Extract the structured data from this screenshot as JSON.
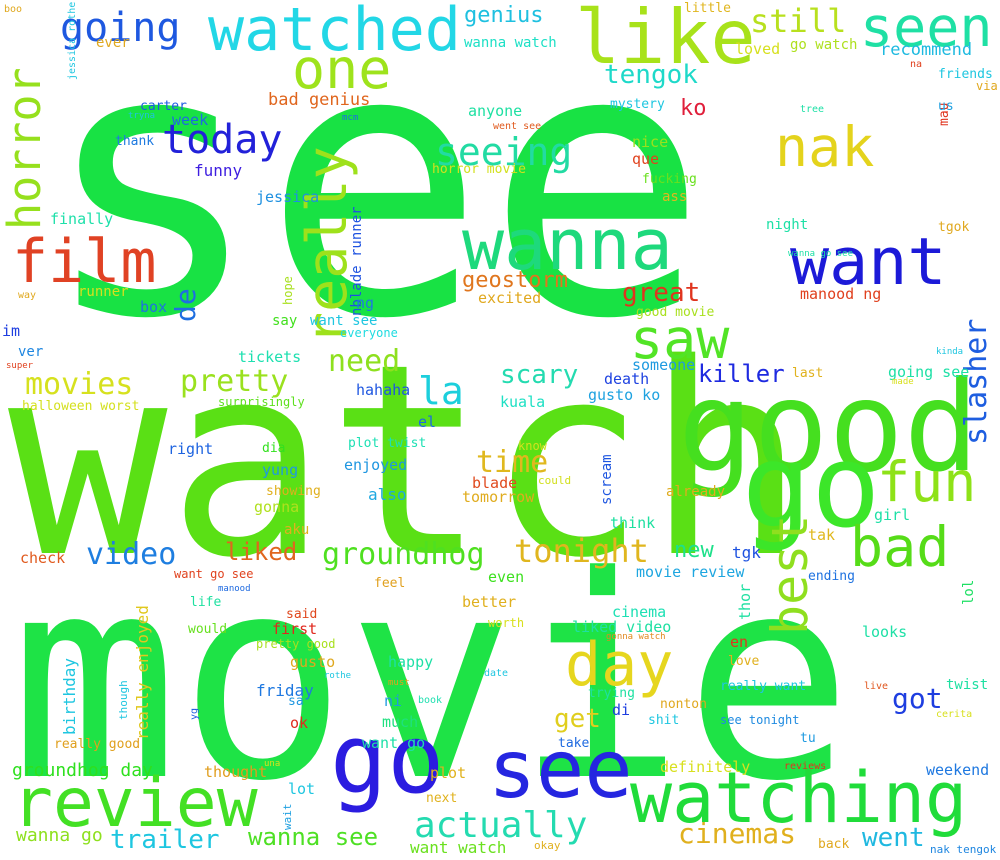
{
  "words": [
    {
      "text": "see",
      "color": "#18e244"
    },
    {
      "text": "watch",
      "color": "#5ae015"
    },
    {
      "text": "movie",
      "color": "#1ee346"
    },
    {
      "text": "good",
      "color": "#45df1f"
    },
    {
      "text": "go",
      "color": "#3ce629"
    },
    {
      "text": "go",
      "color": "#2b1ce0"
    },
    {
      "text": "see",
      "color": "#2526e0"
    },
    {
      "text": "review",
      "color": "#43e024"
    },
    {
      "text": "watching",
      "color": "#20dc3a"
    },
    {
      "text": "watched",
      "color": "#22d7e6"
    },
    {
      "text": "like",
      "color": "#a8e21a"
    },
    {
      "text": "seen",
      "color": "#1fe0a4"
    },
    {
      "text": "one",
      "color": "#9ee31c"
    },
    {
      "text": "wanna",
      "color": "#1ed97c"
    },
    {
      "text": "really",
      "color": "#9ee11b"
    },
    {
      "text": "want",
      "color": "#1c1ad8"
    },
    {
      "text": "nak",
      "color": "#e4d31c"
    },
    {
      "text": "saw",
      "color": "#52e426"
    },
    {
      "text": "day",
      "color": "#e6d61e"
    },
    {
      "text": "bad",
      "color": "#56dc18"
    },
    {
      "text": "fun",
      "color": "#8ee218"
    },
    {
      "text": "best",
      "color": "#8fdf1f"
    },
    {
      "text": "film",
      "color": "#e04224"
    },
    {
      "text": "horror",
      "color": "#96e01d"
    },
    {
      "text": "going",
      "color": "#1e58e0"
    },
    {
      "text": "today",
      "color": "#2221d9"
    },
    {
      "text": "seeing",
      "color": "#22dba3"
    },
    {
      "text": "movies",
      "color": "#d6e11e"
    },
    {
      "text": "pretty",
      "color": "#9ae11e"
    },
    {
      "text": "need",
      "color": "#8ee01e"
    },
    {
      "text": "la",
      "color": "#1ccfdc"
    },
    {
      "text": "video",
      "color": "#1e7ee0"
    },
    {
      "text": "groundhog",
      "color": "#4fe020"
    },
    {
      "text": "tonight",
      "color": "#e0b61e"
    },
    {
      "text": "actually",
      "color": "#24dbb0"
    },
    {
      "text": "trailer",
      "color": "#1ec6e0"
    },
    {
      "text": "wanna see",
      "color": "#4ee024"
    },
    {
      "text": "cinemas",
      "color": "#e0b01e"
    },
    {
      "text": "went",
      "color": "#1fb8e0"
    },
    {
      "text": "slasher",
      "color": "#1e5ee0"
    },
    {
      "text": "killer",
      "color": "#1e2ae0"
    },
    {
      "text": "time",
      "color": "#e0b81e"
    },
    {
      "text": "great",
      "color": "#e0341e"
    },
    {
      "text": "geostorm",
      "color": "#e0761e"
    },
    {
      "text": "scary",
      "color": "#24dbb0"
    },
    {
      "text": "liked",
      "color": "#e0661e"
    },
    {
      "text": "tengok",
      "color": "#1ed9c9"
    },
    {
      "text": "still",
      "color": "#b8e01e"
    },
    {
      "text": "genius",
      "color": "#1ec0e0"
    },
    {
      "text": "de",
      "color": "#1e6ee0"
    },
    {
      "text": "get",
      "color": "#e0ce1e"
    },
    {
      "text": "got",
      "color": "#1e3ee0"
    },
    {
      "text": "new",
      "color": "#1ee08a"
    },
    {
      "text": "ko",
      "color": "#e01e3a"
    },
    {
      "text": "groundhog day",
      "color": "#2ee01e"
    },
    {
      "text": "wanna go",
      "color": "#8ee01e"
    },
    {
      "text": "want watch",
      "color": "#6ae01e"
    },
    {
      "text": "recommend",
      "color": "#1ebae0"
    },
    {
      "text": "loved",
      "color": "#d6e01e"
    },
    {
      "text": "go watch",
      "color": "#aee01e"
    },
    {
      "text": "little",
      "color": "#e0b61e"
    },
    {
      "text": "ever",
      "color": "#e0a81e"
    },
    {
      "text": "wanna watch",
      "color": "#1ee0c6"
    },
    {
      "text": "bad genius",
      "color": "#e0661e"
    },
    {
      "text": "anyone",
      "color": "#1ee0a2"
    },
    {
      "text": "week",
      "color": "#1e6ae0"
    },
    {
      "text": "carter",
      "color": "#1e5ae0"
    },
    {
      "text": "thank",
      "color": "#1e7ae0"
    },
    {
      "text": "funny",
      "color": "#3e1ee0"
    },
    {
      "text": "jessica",
      "color": "#1e90e0"
    },
    {
      "text": "finally",
      "color": "#1ee0aa"
    },
    {
      "text": "runner",
      "color": "#d6e01e"
    },
    {
      "text": "box",
      "color": "#1e72e0"
    },
    {
      "text": "im",
      "color": "#1e3ee0"
    },
    {
      "text": "ver",
      "color": "#1e86e0"
    },
    {
      "text": "nice",
      "color": "#9ae01e"
    },
    {
      "text": "que",
      "color": "#e0421e"
    },
    {
      "text": "fucking",
      "color": "#6ae01e"
    },
    {
      "text": "ass",
      "color": "#e0b81e"
    },
    {
      "text": "horror movie",
      "color": "#d2e01e"
    },
    {
      "text": "went see",
      "color": "#e05a1e"
    },
    {
      "text": "excited",
      "color": "#e0a81e"
    },
    {
      "text": "nblade runner",
      "color": "#1e52e0"
    },
    {
      "text": "hope",
      "color": "#a8e01e"
    },
    {
      "text": "ng",
      "color": "#1e78e0"
    },
    {
      "text": "want see",
      "color": "#1ec6e0"
    },
    {
      "text": "say",
      "color": "#42e01e"
    },
    {
      "text": "everyone",
      "color": "#1edbe0"
    },
    {
      "text": "tickets",
      "color": "#1ee0b0"
    },
    {
      "text": "hahaha",
      "color": "#1e56e0"
    },
    {
      "text": "someone",
      "color": "#1e9ae0"
    },
    {
      "text": "death",
      "color": "#1e42e0"
    },
    {
      "text": "gusto ko",
      "color": "#1ea2e0"
    },
    {
      "text": "kuala",
      "color": "#1ee0c4"
    },
    {
      "text": "surprisingly",
      "color": "#5ee01e"
    },
    {
      "text": "halloween worst",
      "color": "#d4e01e"
    },
    {
      "text": "right",
      "color": "#1e64e0"
    },
    {
      "text": "plot twist",
      "color": "#1ee0b4"
    },
    {
      "text": "el",
      "color": "#1e6ae0"
    },
    {
      "text": "dia",
      "color": "#32e01e"
    },
    {
      "text": "yung",
      "color": "#1e9ae0"
    },
    {
      "text": "enjoyed",
      "color": "#1e96e0"
    },
    {
      "text": "also",
      "color": "#1ea8e0"
    },
    {
      "text": "blade",
      "color": "#e04a1e"
    },
    {
      "text": "tomorrow",
      "color": "#e0ac1e"
    },
    {
      "text": "know",
      "color": "#d2e01e"
    },
    {
      "text": "could",
      "color": "#d2e01e"
    },
    {
      "text": "showing",
      "color": "#e0b01e"
    },
    {
      "text": "scream",
      "color": "#1e56e0"
    },
    {
      "text": "gonna",
      "color": "#b0e01e"
    },
    {
      "text": "aku",
      "color": "#e0b01e"
    },
    {
      "text": "think",
      "color": "#1ee0a0"
    },
    {
      "text": "already",
      "color": "#e0ac1e"
    },
    {
      "text": "girl",
      "color": "#1ee0a6"
    },
    {
      "text": "tak",
      "color": "#e0b81e"
    },
    {
      "text": "tgk",
      "color": "#1e52e0"
    },
    {
      "text": "check",
      "color": "#e05a1e"
    },
    {
      "text": "want go see",
      "color": "#e0421e"
    },
    {
      "text": "manood",
      "color": "#1e6ae0"
    },
    {
      "text": "tryna",
      "color": "#1ec2e0"
    },
    {
      "text": "mcm",
      "color": "#1e6ee0"
    },
    {
      "text": "feel",
      "color": "#e0a01e"
    },
    {
      "text": "even",
      "color": "#3ce01e"
    },
    {
      "text": "better",
      "color": "#e0b01e"
    },
    {
      "text": "movie review",
      "color": "#1ea6e0"
    },
    {
      "text": "ending",
      "color": "#1e72e0"
    },
    {
      "text": "life",
      "color": "#1ee0a0"
    },
    {
      "text": "said",
      "color": "#e0481e"
    },
    {
      "text": "first",
      "color": "#e0281e"
    },
    {
      "text": "pretty good",
      "color": "#a8e01e"
    },
    {
      "text": "gusto",
      "color": "#e0a81e"
    },
    {
      "text": "friday",
      "color": "#1e78e0"
    },
    {
      "text": "sa",
      "color": "#1e96e0"
    },
    {
      "text": "ok",
      "color": "#e02a1e"
    },
    {
      "text": "thought",
      "color": "#e09e1e"
    },
    {
      "text": "really good",
      "color": "#e0a01e"
    },
    {
      "text": "birthday",
      "color": "#1ec6e0"
    },
    {
      "text": "really enjoyed",
      "color": "#e0c81e"
    },
    {
      "text": "though",
      "color": "#1ec6e0"
    },
    {
      "text": "yg",
      "color": "#1e5ee0"
    },
    {
      "text": "would",
      "color": "#66e01e"
    },
    {
      "text": "una",
      "color": "#d8e01e"
    },
    {
      "text": "lot",
      "color": "#1ec6e0"
    },
    {
      "text": "wait",
      "color": "#1ea0e0"
    },
    {
      "text": "plot",
      "color": "#e0b21e"
    },
    {
      "text": "next",
      "color": "#e0b21e"
    },
    {
      "text": "much",
      "color": "#1ee07e"
    },
    {
      "text": "want go",
      "color": "#1ee0a8"
    },
    {
      "text": "happy",
      "color": "#1ee0a6"
    },
    {
      "text": "ni",
      "color": "#1e9ae0"
    },
    {
      "text": "must",
      "color": "#e0a01e"
    },
    {
      "text": "book",
      "color": "#1ee0b0"
    },
    {
      "text": "date",
      "color": "#1ec6e0"
    },
    {
      "text": "rothe",
      "color": "#1ec6e0"
    },
    {
      "text": "worth",
      "color": "#d8e01e"
    },
    {
      "text": "cinema",
      "color": "#1ee0b4"
    },
    {
      "text": "liked video",
      "color": "#1ee0a2"
    },
    {
      "text": "gonna watch",
      "color": "#e0881e"
    },
    {
      "text": "en",
      "color": "#e0341e"
    },
    {
      "text": "love",
      "color": "#e0b01e"
    },
    {
      "text": "thor",
      "color": "#1ee0a2"
    },
    {
      "text": "trying",
      "color": "#1ee0a2"
    },
    {
      "text": "di",
      "color": "#1e3ee0"
    },
    {
      "text": "shit",
      "color": "#1ec6e0"
    },
    {
      "text": "nonton",
      "color": "#e0a81e"
    },
    {
      "text": "see tonight",
      "color": "#1e8ae0"
    },
    {
      "text": "take",
      "color": "#1e6ae0"
    },
    {
      "text": "tu",
      "color": "#1e9ae0"
    },
    {
      "text": "definitely",
      "color": "#d8e01e"
    },
    {
      "text": "reviews",
      "color": "#e0341e"
    },
    {
      "text": "okay",
      "color": "#e0b01e"
    },
    {
      "text": "back",
      "color": "#e0a81e"
    },
    {
      "text": "weekend",
      "color": "#1e78e0"
    },
    {
      "text": "really want",
      "color": "#1ec6e0"
    },
    {
      "text": "live",
      "color": "#e0561e"
    },
    {
      "text": "cerita",
      "color": "#d8e01e"
    },
    {
      "text": "twist",
      "color": "#1ee0a2"
    },
    {
      "text": "looks",
      "color": "#1ee0a6"
    },
    {
      "text": "nak tengok",
      "color": "#1e86e0"
    },
    {
      "text": "manood ng",
      "color": "#e0401e"
    },
    {
      "text": "good movie",
      "color": "#a8e01e"
    },
    {
      "text": "last",
      "color": "#e0b21e"
    },
    {
      "text": "going see",
      "color": "#1ee0a6"
    },
    {
      "text": "lol",
      "color": "#1ee064"
    },
    {
      "text": "made",
      "color": "#d8e01e"
    },
    {
      "text": "kinda",
      "color": "#1ec6e0"
    },
    {
      "text": "tgok",
      "color": "#e0a81e"
    },
    {
      "text": "night",
      "color": "#1ee0a6"
    },
    {
      "text": "wanna go see",
      "color": "#1ee0a6"
    },
    {
      "text": "tree",
      "color": "#1ee0a6"
    },
    {
      "text": "mystery",
      "color": "#1ec6e0"
    },
    {
      "text": "friends",
      "color": "#1ec6e0"
    },
    {
      "text": "via",
      "color": "#e0a81e"
    },
    {
      "text": "us",
      "color": "#1ea0e0"
    },
    {
      "text": "na",
      "color": "#e0401e"
    },
    {
      "text": "boo",
      "color": "#e0a81e"
    },
    {
      "text": "mau",
      "color": "#e0341e"
    },
    {
      "text": "way",
      "color": "#e0a81e"
    },
    {
      "text": "super",
      "color": "#e0401e"
    },
    {
      "text": "jessica rothe",
      "color": "#1ec6e0"
    }
  ]
}
